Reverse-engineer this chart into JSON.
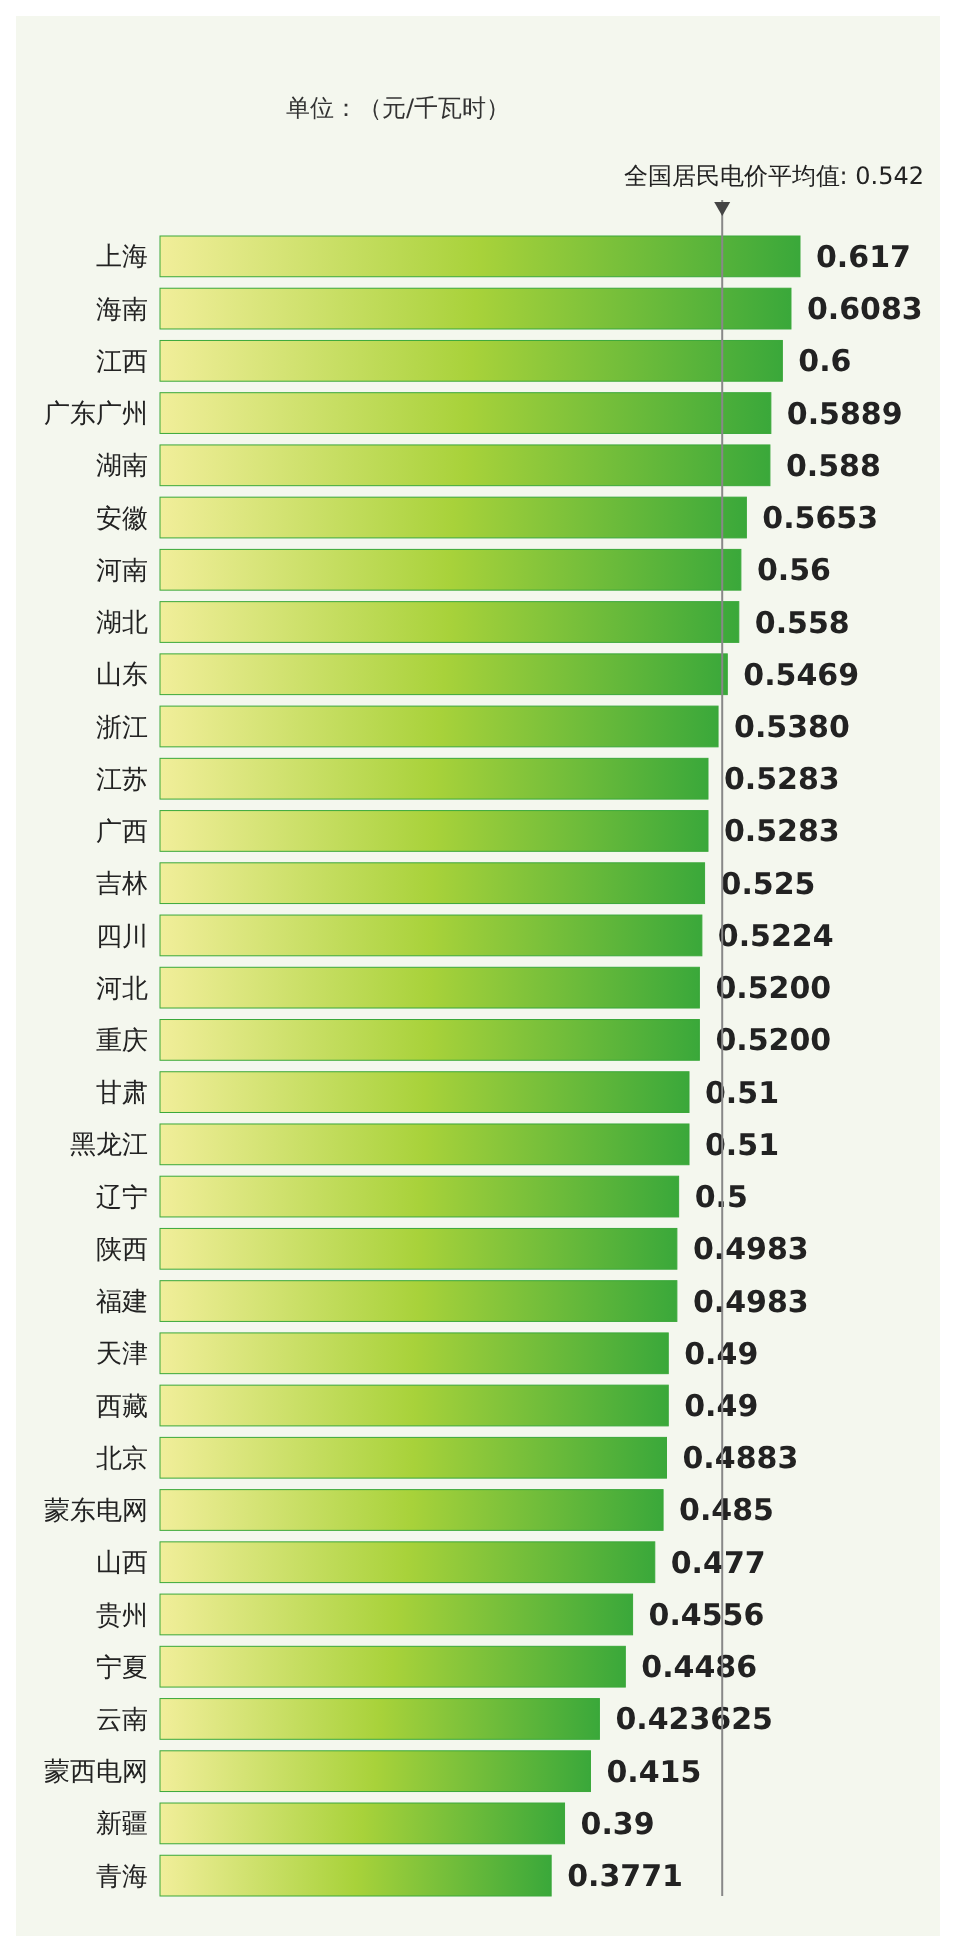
{
  "chart_data": {
    "type": "bar",
    "orientation": "horizontal",
    "subtitle": "单位：（元/千瓦时）",
    "categories": [
      "上海",
      "海南",
      "江西",
      "广东广州",
      "湖南",
      "安徽",
      "河南",
      "湖北",
      "山东",
      "浙江",
      "江苏",
      "广西",
      "吉林",
      "四川",
      "河北",
      "重庆",
      "甘肃",
      "黑龙江",
      "辽宁",
      "陕西",
      "福建",
      "天津",
      "西藏",
      "北京",
      "蒙东电网",
      "山西",
      "贵州",
      "宁夏",
      "云南",
      "蒙西电网",
      "新疆",
      "青海"
    ],
    "values": [
      0.617,
      0.6083,
      0.6,
      0.5889,
      0.588,
      0.5653,
      0.56,
      0.558,
      0.5469,
      0.538,
      0.5283,
      0.5283,
      0.525,
      0.5224,
      0.52,
      0.52,
      0.51,
      0.51,
      0.5,
      0.4983,
      0.4983,
      0.49,
      0.49,
      0.4883,
      0.485,
      0.477,
      0.4556,
      0.4486,
      0.423625,
      0.415,
      0.39,
      0.3771
    ],
    "value_labels": [
      "0.617",
      "0.6083",
      "0.6",
      "0.5889",
      "0.588",
      "0.5653",
      "0.56",
      "0.558",
      "0.5469",
      "0.5380",
      "0.5283",
      "0.5283",
      "0.525",
      "0.5224",
      "0.5200",
      "0.5200",
      "0.51",
      "0.51",
      "0.5",
      "0.4983",
      "0.4983",
      "0.49",
      "0.49",
      "0.4883",
      "0.485",
      "0.477",
      "0.4556",
      "0.4486",
      "0.423625",
      "0.415",
      "0.39",
      "0.3771"
    ],
    "color": "#3aa83a",
    "ref_lines": [
      {
        "axis": "x",
        "value": 0.542,
        "label": "全国居民电价平均值: 0.542",
        "color": "#888888"
      }
    ]
  }
}
